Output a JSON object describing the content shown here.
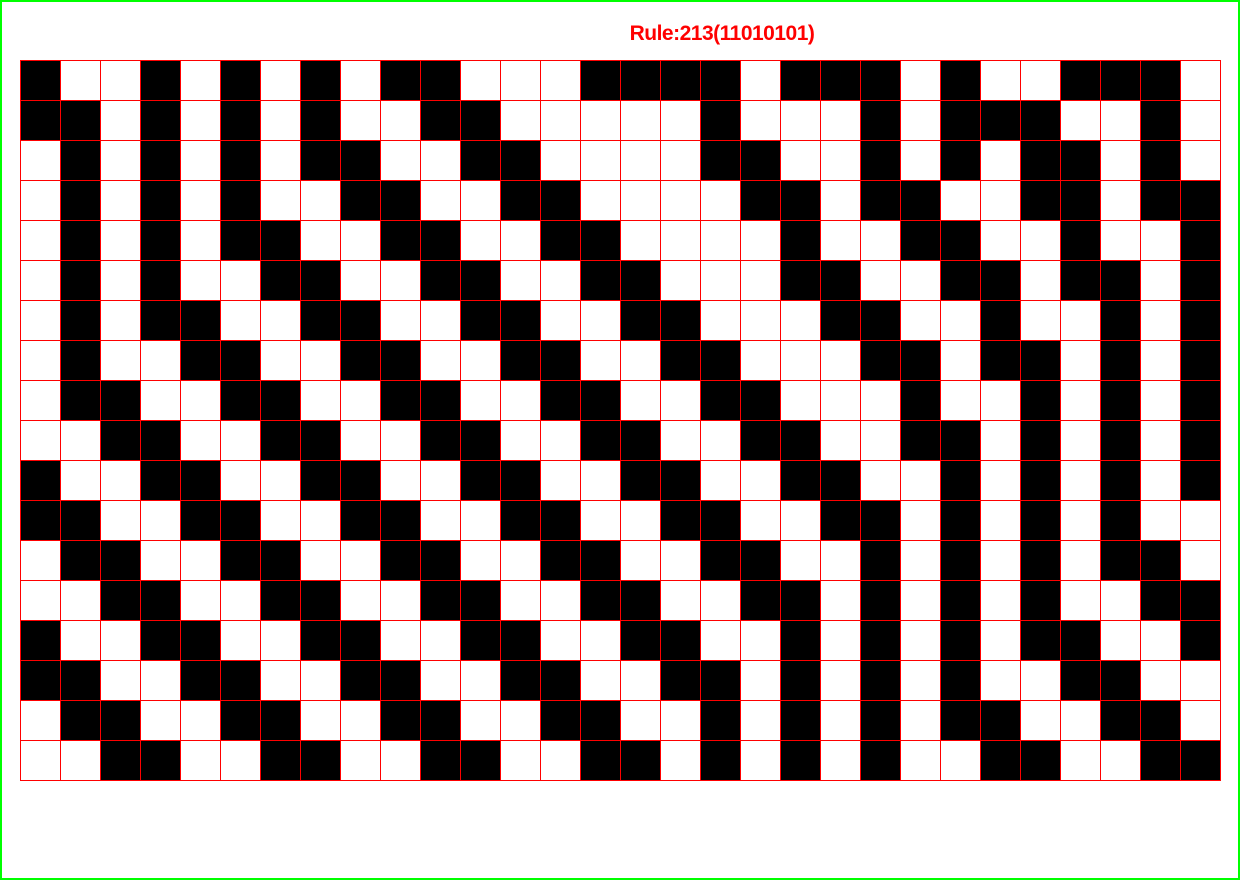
{
  "title": "Rule:213(11010101)",
  "colors": {
    "frame": "#00ff00",
    "title": "#ff0000",
    "grid_line": "#ff0000",
    "alive": "#000000",
    "dead": "#ffffff"
  },
  "automaton": {
    "rule": 213,
    "rule_binary": "11010101",
    "columns": 30,
    "rows": 18,
    "cells": [
      "100101010110001111011101001110",
      "110101010011000001000101110010",
      "010101011001100001100101011010",
      "010101001100110000110110011011",
      "010101100110011000010011001001",
      "010100110011001100011001101101",
      "010110011001100110001100100101",
      "010011001100110011000110110101",
      "011001100110011001100010010101",
      "001100110011001100110011010101",
      "100110011001100110011001010101",
      "110011001100110011001101010100",
      "011001100110011001100101010110",
      "001100110011001100110101010011",
      "100110011001100110010101011001",
      "110011001100110011010101001100",
      "011001100110011001010101100110",
      "001100110011001101010100110011"
    ]
  }
}
